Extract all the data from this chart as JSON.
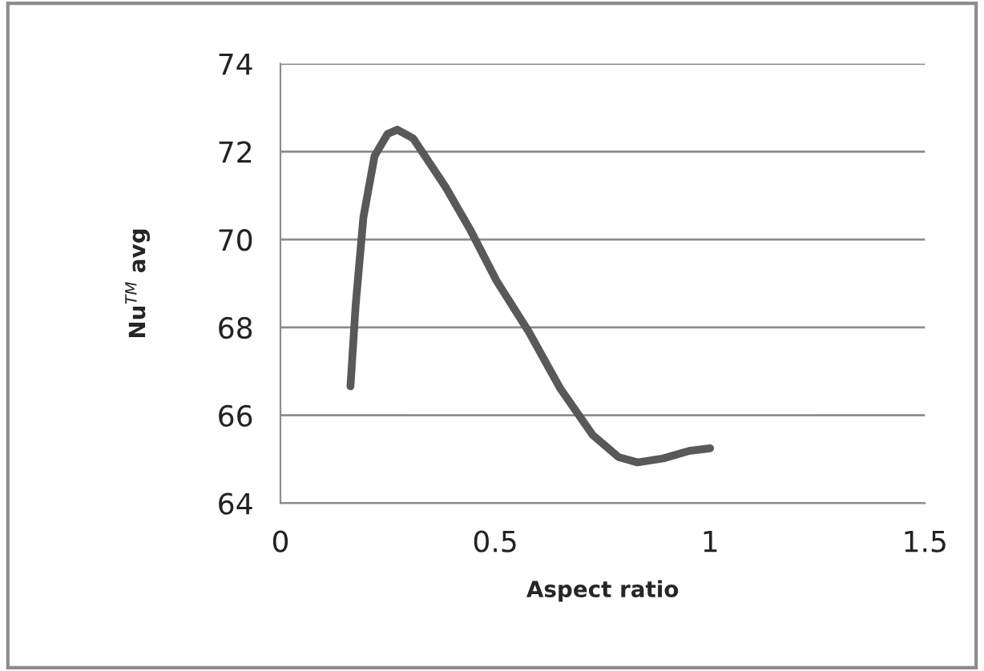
{
  "chart_data": {
    "type": "line",
    "xlabel": "Aspect ratio",
    "ylabel": "Nu$^{TM}$ avg",
    "xlim": [
      0,
      1.5
    ],
    "xticks": [
      0,
      0.5,
      1,
      1.5
    ],
    "ylim": [
      64,
      74
    ],
    "yticks": [
      64,
      66,
      68,
      70,
      72,
      74
    ],
    "grid": "y",
    "marker": "none",
    "line_style": "solid",
    "series": [
      {
        "color": "#595959",
        "x": [
          0.163,
          0.175,
          0.193,
          0.219,
          0.249,
          0.272,
          0.309,
          0.384,
          0.443,
          0.503,
          0.578,
          0.652,
          0.727,
          0.787,
          0.831,
          0.891,
          0.951,
          1.0
        ],
        "values": [
          66.66,
          68.5,
          70.5,
          71.9,
          72.4,
          72.5,
          72.3,
          71.2,
          70.2,
          69.06,
          67.9,
          66.6,
          65.55,
          65.05,
          64.93,
          65.02,
          65.19,
          65.25
        ]
      }
    ]
  }
}
